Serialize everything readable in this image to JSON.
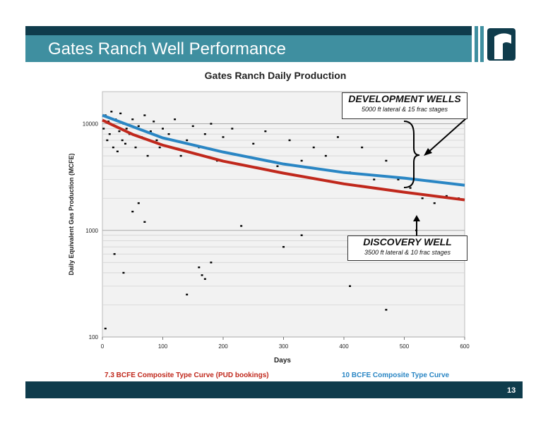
{
  "header": {
    "title": "Gates Ranch Well Performance"
  },
  "page_number": "13",
  "annotations": [
    {
      "title": "DEVELOPMENT WELLS",
      "text": "5000 ft lateral & 15 frac stages"
    },
    {
      "title": "DISCOVERY WELL",
      "text": "3500 ft lateral & 10 frac stages"
    }
  ],
  "chart_data": {
    "type": "scatter",
    "title": "Gates Ranch Daily Production",
    "xlabel": "Days",
    "ylabel": "Daily Equivalent Gas Production (MCFE)",
    "xlim": [
      0,
      600
    ],
    "xticks": [
      0,
      100,
      200,
      300,
      400,
      500,
      600
    ],
    "ylim": [
      100,
      20000
    ],
    "yticks": [
      100,
      1000,
      10000
    ],
    "log_y": true,
    "grid": true,
    "minor_grid": [
      200,
      300,
      400,
      500,
      600,
      700,
      800,
      900,
      2000,
      3000,
      4000,
      5000,
      6000,
      7000,
      8000,
      9000
    ],
    "series": [
      {
        "style": "points",
        "color": "#000000",
        "x": [
          2,
          5,
          8,
          10,
          12,
          15,
          18,
          20,
          22,
          25,
          28,
          30,
          33,
          35,
          38,
          40,
          45,
          50,
          55,
          60,
          65,
          70,
          75,
          80,
          85,
          90,
          95,
          100,
          110,
          120,
          130,
          140,
          150,
          160,
          170,
          180,
          190,
          200,
          215,
          230,
          250,
          270,
          290,
          310,
          330,
          350,
          370,
          390,
          410,
          430,
          450,
          470,
          490,
          510,
          530,
          550,
          570,
          590,
          5,
          20,
          35,
          50,
          60,
          70,
          160,
          165,
          170,
          180,
          300,
          410,
          470,
          520,
          140,
          230,
          330
        ],
        "values": [
          9000,
          12000,
          7000,
          10500,
          8000,
          13000,
          6000,
          9500,
          11000,
          5500,
          8500,
          12500,
          7000,
          10000,
          6500,
          9000,
          8000,
          11000,
          6000,
          9500,
          7500,
          12000,
          5000,
          8500,
          10500,
          7000,
          6000,
          9000,
          8000,
          11000,
          5000,
          7000,
          9500,
          6000,
          8000,
          10000,
          4500,
          7500,
          9000,
          5000,
          6500,
          8500,
          4000,
          7000,
          4500,
          6000,
          5000,
          7500,
          3500,
          6000,
          3000,
          4500,
          3000,
          2500,
          2000,
          1800,
          2100,
          2000,
          120,
          600,
          400,
          1500,
          1800,
          1200,
          450,
          380,
          350,
          500,
          700,
          300,
          180,
          1000,
          250,
          1100,
          900
        ]
      },
      {
        "style": "line",
        "name": "7.3 BCFE Composite Type Curve (PUD bookings)",
        "color": "#c0281c",
        "x": [
          0,
          50,
          100,
          200,
          300,
          400,
          500,
          600
        ],
        "values": [
          10800,
          7950,
          6300,
          4460,
          3440,
          2730,
          2280,
          1930
        ]
      },
      {
        "style": "line",
        "name": "10 BCFE Composite Type Curve",
        "color": "#2a86c4",
        "x": [
          0,
          100,
          200,
          300,
          400,
          500,
          600
        ],
        "values": [
          12000,
          7370,
          5430,
          4190,
          3490,
          3090,
          2650
        ]
      }
    ]
  }
}
